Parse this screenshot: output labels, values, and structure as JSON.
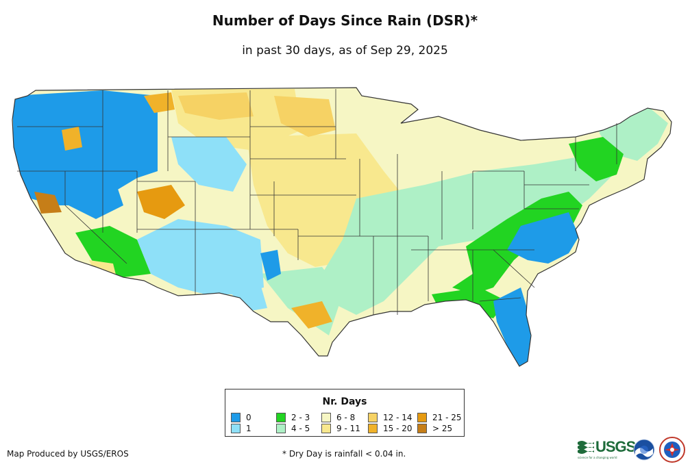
{
  "title": "Number of Days Since Rain (DSR)*",
  "subtitle": "in past 30 days, as of Sep 29, 2025",
  "legend": {
    "title": "Nr. Days",
    "items": [
      {
        "label": "0",
        "color": "#1e9be8"
      },
      {
        "label": "1",
        "color": "#8ee0f8"
      },
      {
        "label": "2 - 3",
        "color": "#22d422"
      },
      {
        "label": "4 - 5",
        "color": "#aef0c6"
      },
      {
        "label": "6 - 8",
        "color": "#f6f6c4"
      },
      {
        "label": "9 - 11",
        "color": "#f8e88e"
      },
      {
        "label": "12 - 14",
        "color": "#f6d264"
      },
      {
        "label": "15 - 20",
        "color": "#f0b22a"
      },
      {
        "label": "21 - 25",
        "color": "#e69a10"
      },
      {
        "label": "> 25",
        "color": "#c67e18"
      }
    ]
  },
  "credit": "Map Produced by USGS/EROS",
  "footnote": "* Dry Day is rainfall < 0.04 in.",
  "logos": {
    "usgs": "USGS",
    "usgs_tagline": "science for a changing world",
    "noaa": "NOAA",
    "nws": "NATIONAL WEATHER SERVICE"
  },
  "map_colors": {
    "state_border": "#333333"
  }
}
